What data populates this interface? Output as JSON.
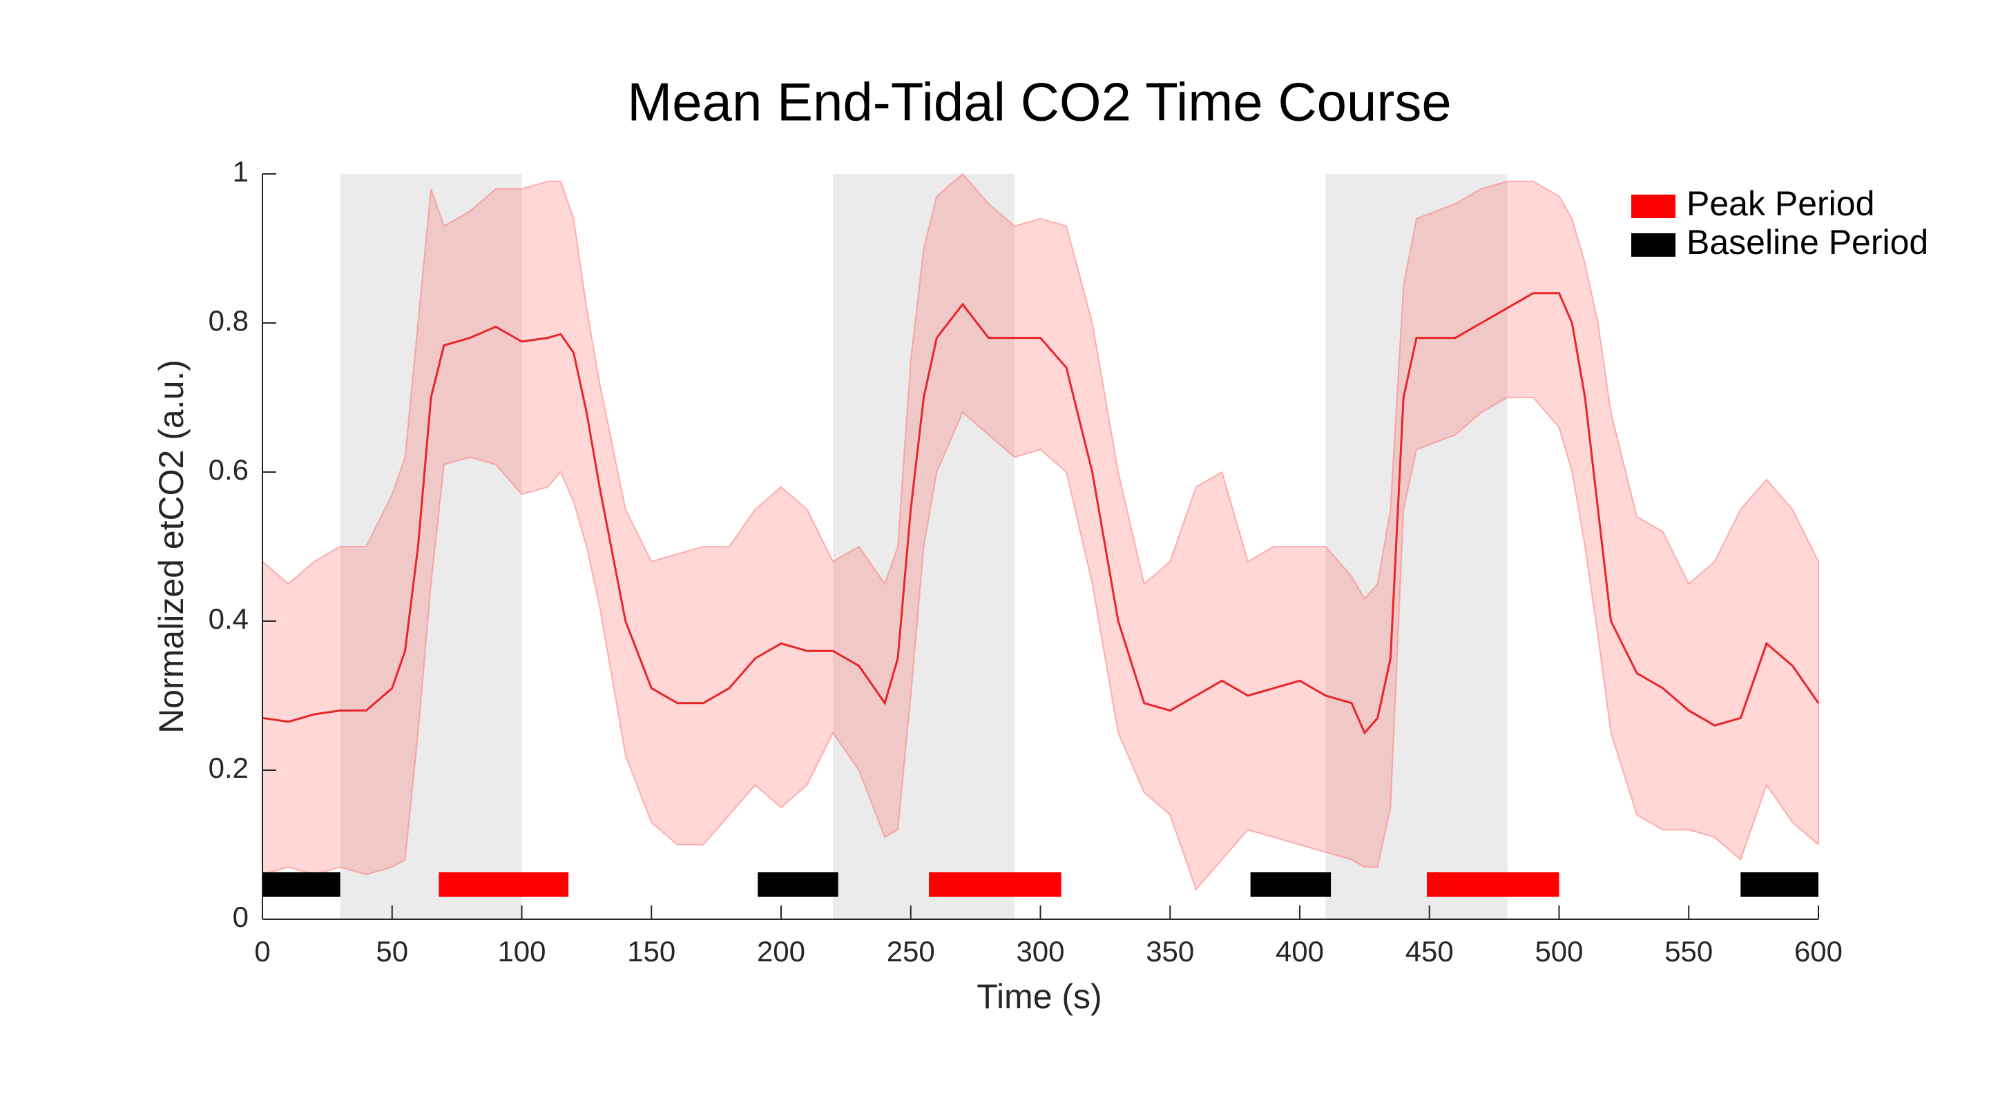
{
  "chart_data": {
    "type": "band-line",
    "title": "Mean End-Tidal CO2 Time Course",
    "xlabel": "Time (s)",
    "ylabel": "Normalized etCO2 (a.u.)",
    "xlim": [
      0,
      600
    ],
    "ylim": [
      0,
      1
    ],
    "xticks": [
      0,
      50,
      100,
      150,
      200,
      250,
      300,
      350,
      400,
      450,
      500,
      550,
      600
    ],
    "yticks": [
      0,
      0.2,
      0.4,
      0.6,
      0.8,
      1
    ],
    "x": [
      0,
      10,
      20,
      30,
      40,
      50,
      55,
      60,
      65,
      70,
      80,
      90,
      100,
      110,
      115,
      120,
      125,
      130,
      140,
      150,
      160,
      170,
      180,
      190,
      200,
      210,
      220,
      230,
      240,
      245,
      250,
      255,
      260,
      270,
      280,
      290,
      300,
      310,
      320,
      330,
      340,
      350,
      360,
      370,
      380,
      390,
      400,
      410,
      420,
      425,
      430,
      435,
      440,
      445,
      460,
      470,
      480,
      490,
      500,
      505,
      510,
      515,
      520,
      530,
      540,
      550,
      560,
      570,
      580,
      590,
      600
    ],
    "mean": {
      "color": "#e8262a",
      "values": [
        0.27,
        0.265,
        0.275,
        0.28,
        0.28,
        0.31,
        0.36,
        0.5,
        0.7,
        0.77,
        0.78,
        0.795,
        0.775,
        0.78,
        0.785,
        0.76,
        0.68,
        0.58,
        0.4,
        0.31,
        0.29,
        0.29,
        0.31,
        0.35,
        0.37,
        0.36,
        0.36,
        0.34,
        0.29,
        0.35,
        0.55,
        0.7,
        0.78,
        0.825,
        0.78,
        0.78,
        0.78,
        0.74,
        0.6,
        0.4,
        0.29,
        0.28,
        0.3,
        0.32,
        0.3,
        0.31,
        0.32,
        0.3,
        0.29,
        0.25,
        0.27,
        0.35,
        0.7,
        0.78,
        0.78,
        0.8,
        0.82,
        0.84,
        0.84,
        0.8,
        0.7,
        0.55,
        0.4,
        0.33,
        0.31,
        0.28,
        0.26,
        0.27,
        0.37,
        0.34,
        0.29
      ]
    },
    "band": {
      "color": "#ff6f6f",
      "upper": [
        0.48,
        0.45,
        0.48,
        0.5,
        0.5,
        0.57,
        0.62,
        0.8,
        0.98,
        0.93,
        0.95,
        0.98,
        0.98,
        0.99,
        0.99,
        0.94,
        0.82,
        0.72,
        0.55,
        0.48,
        0.49,
        0.5,
        0.5,
        0.55,
        0.58,
        0.55,
        0.48,
        0.5,
        0.45,
        0.5,
        0.75,
        0.9,
        0.97,
        1.0,
        0.96,
        0.93,
        0.94,
        0.93,
        0.8,
        0.6,
        0.45,
        0.48,
        0.58,
        0.6,
        0.48,
        0.5,
        0.5,
        0.5,
        0.46,
        0.43,
        0.45,
        0.55,
        0.85,
        0.94,
        0.96,
        0.98,
        0.99,
        0.99,
        0.97,
        0.94,
        0.88,
        0.8,
        0.68,
        0.54,
        0.52,
        0.45,
        0.48,
        0.55,
        0.59,
        0.55,
        0.48
      ],
      "lower": [
        0.06,
        0.07,
        0.06,
        0.07,
        0.06,
        0.07,
        0.08,
        0.25,
        0.45,
        0.61,
        0.62,
        0.61,
        0.57,
        0.58,
        0.6,
        0.56,
        0.5,
        0.42,
        0.22,
        0.13,
        0.1,
        0.1,
        0.14,
        0.18,
        0.15,
        0.18,
        0.25,
        0.2,
        0.11,
        0.12,
        0.3,
        0.5,
        0.6,
        0.68,
        0.65,
        0.62,
        0.63,
        0.6,
        0.45,
        0.25,
        0.17,
        0.14,
        0.04,
        0.08,
        0.12,
        0.11,
        0.1,
        0.09,
        0.08,
        0.07,
        0.07,
        0.15,
        0.55,
        0.63,
        0.65,
        0.68,
        0.7,
        0.7,
        0.66,
        0.6,
        0.5,
        0.38,
        0.25,
        0.14,
        0.12,
        0.12,
        0.11,
        0.08,
        0.18,
        0.13,
        0.1
      ]
    },
    "shaded_intervals": [
      [
        30,
        100
      ],
      [
        220,
        290
      ],
      [
        410,
        480
      ]
    ],
    "shade_color": "#ebebeb",
    "period_yrange": [
      0.03,
      0.063
    ],
    "periods": [
      {
        "name": "Peak Period",
        "color": "#ff0000",
        "intervals": [
          [
            68,
            118
          ],
          [
            257,
            308
          ],
          [
            449,
            500
          ]
        ]
      },
      {
        "name": "Baseline Period",
        "color": "#000000",
        "intervals": [
          [
            0,
            30
          ],
          [
            191,
            222
          ],
          [
            381,
            412
          ],
          [
            570,
            600
          ]
        ]
      }
    ]
  }
}
